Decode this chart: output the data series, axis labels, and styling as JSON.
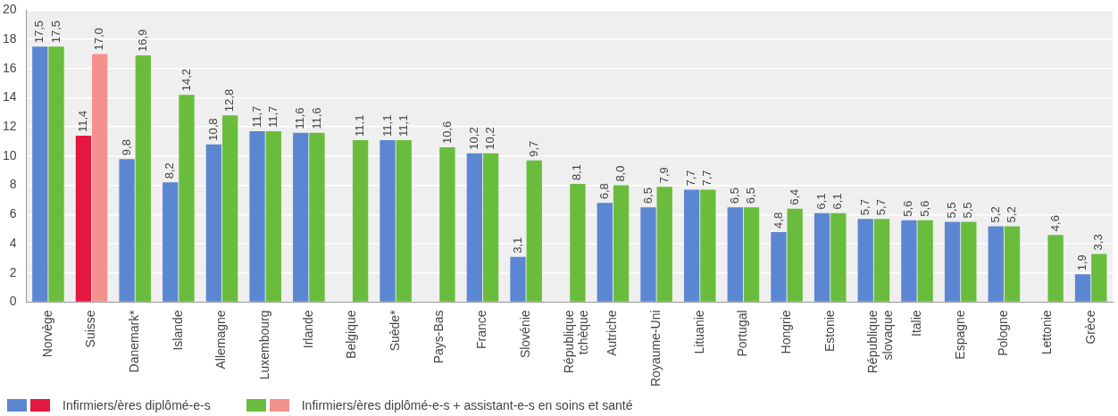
{
  "chart_data": {
    "type": "bar",
    "categories": [
      "Norvège",
      "Suisse",
      "Danemark*",
      "Islande",
      "Allemagne",
      "Luxembourg",
      "Irlande",
      "Belgique",
      "Suède*",
      "Pays-Bas",
      "France",
      "Slovénie",
      "République tchèque",
      "Autriche",
      "Royaume-Uni",
      "Lituanie",
      "Portugal",
      "Hongrie",
      "Estonie",
      "République slovaque",
      "Italie",
      "Espagne",
      "Pologne",
      "Lettonie",
      "Grèce"
    ],
    "series": [
      {
        "name": "Infirmiers/ères diplômé-e-s",
        "color": "#5b87d2",
        "colors": [
          "#5b87d2",
          "#e3173f",
          "#5b87d2",
          "#5b87d2",
          "#5b87d2",
          "#5b87d2",
          "#5b87d2",
          "#5b87d2",
          "#5b87d2",
          "#5b87d2",
          "#5b87d2",
          "#5b87d2",
          "#5b87d2",
          "#5b87d2",
          "#5b87d2",
          "#5b87d2",
          "#5b87d2",
          "#5b87d2",
          "#5b87d2",
          "#5b87d2",
          "#5b87d2",
          "#5b87d2",
          "#5b87d2",
          "#5b87d2",
          "#5b87d2"
        ],
        "values": [
          17.5,
          11.4,
          9.8,
          8.2,
          10.8,
          11.7,
          11.6,
          null,
          11.1,
          null,
          10.2,
          3.1,
          null,
          6.8,
          6.5,
          7.7,
          6.5,
          4.8,
          6.1,
          5.7,
          5.6,
          5.5,
          5.2,
          null,
          1.9
        ],
        "value_labels": [
          "17,5",
          "11,4",
          "9,8",
          "8,2",
          "10,8",
          "11,7",
          "11,6",
          null,
          "11,1",
          null,
          "10,2",
          "3,1",
          null,
          "6,8",
          "6,5",
          "7,7",
          "6,5",
          "4,8",
          "6,1",
          "5,7",
          "5,6",
          "5,5",
          "5,2",
          null,
          "1,9"
        ]
      },
      {
        "name": "Infirmiers/ères diplômé-e-s + assistant-e-s en soins et santé",
        "color": "#6abd3c",
        "colors": [
          "#6abd3c",
          "#f4918c",
          "#6abd3c",
          "#6abd3c",
          "#6abd3c",
          "#6abd3c",
          "#6abd3c",
          "#6abd3c",
          "#6abd3c",
          "#6abd3c",
          "#6abd3c",
          "#6abd3c",
          "#6abd3c",
          "#6abd3c",
          "#6abd3c",
          "#6abd3c",
          "#6abd3c",
          "#6abd3c",
          "#6abd3c",
          "#6abd3c",
          "#6abd3c",
          "#6abd3c",
          "#6abd3c",
          "#6abd3c",
          "#6abd3c"
        ],
        "values": [
          17.5,
          17.0,
          16.9,
          14.2,
          12.8,
          11.7,
          11.6,
          11.1,
          11.1,
          10.6,
          10.2,
          9.7,
          8.1,
          8.0,
          7.9,
          7.7,
          6.5,
          6.4,
          6.1,
          5.7,
          5.6,
          5.5,
          5.2,
          4.6,
          3.3
        ],
        "value_labels": [
          "17,5",
          "17,0",
          "16,9",
          "14,2",
          "12,8",
          "11,7",
          "11,6",
          "11,1",
          "11,1",
          "10,6",
          "10,2",
          "9,7",
          "8,1",
          "8,0",
          "7,9",
          "7,7",
          "6,5",
          "6,4",
          "6,1",
          "5,7",
          "5,6",
          "5,5",
          "5,2",
          "4,6",
          "3,3"
        ]
      }
    ],
    "ylim": [
      0,
      20
    ],
    "yticks": [
      0,
      2,
      4,
      6,
      8,
      10,
      12,
      14,
      16,
      18,
      20
    ],
    "grid": "y",
    "legend": "bottom left"
  }
}
